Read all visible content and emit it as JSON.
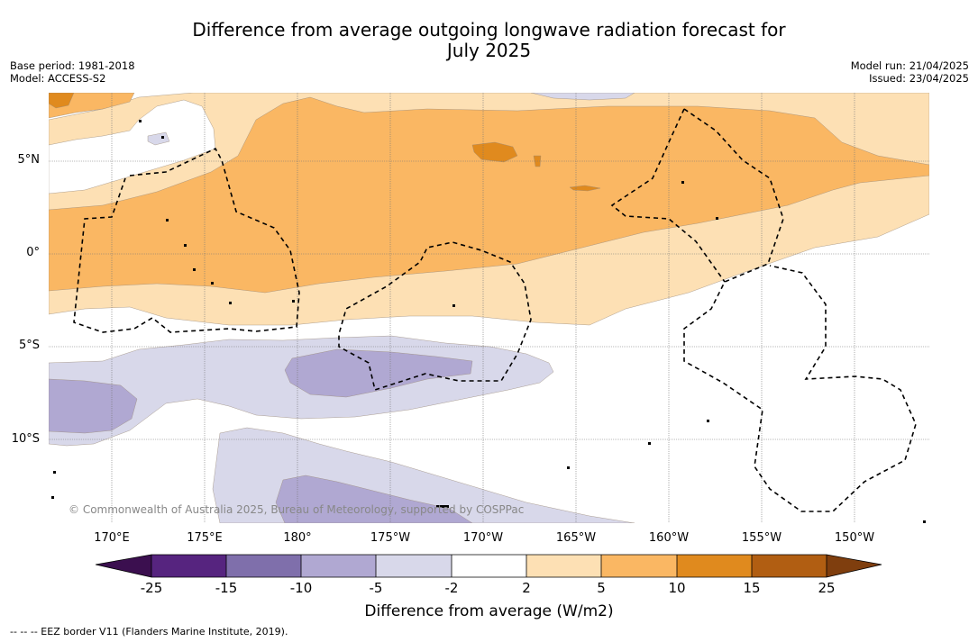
{
  "title_line1": "Difference from average outgoing longwave radiation forecast for",
  "title_line2": "July 2025",
  "meta_left": {
    "base_period": "Base period: 1981-2018",
    "model": "Model: ACCESS-S2"
  },
  "meta_right": {
    "model_run": "Model run: 21/04/2025",
    "issued": "Issued: 23/04/2025"
  },
  "lat_labels": [
    "5°N",
    "0°",
    "5°S",
    "10°S"
  ],
  "lon_labels": [
    "170°E",
    "175°E",
    "180°",
    "175°W",
    "170°W",
    "165°W",
    "160°W",
    "155°W",
    "150°W"
  ],
  "copyright": "© Commonwealth of Australia 2025, Bureau of Meteorology, supported by COSPPac",
  "colorbar": {
    "ticks": [
      "-25",
      "-15",
      "-10",
      "-5",
      "-2",
      "2",
      "5",
      "10",
      "15",
      "25"
    ],
    "colors": [
      "#3b0f4f",
      "#56247f",
      "#7f6fab",
      "#b0a8d2",
      "#d8d8ea",
      "#ffffff",
      "#fde0b4",
      "#fab763",
      "#e08a1e",
      "#b15e12",
      "#7f3e0e"
    ],
    "label": "Difference from average (W/m2)"
  },
  "footnote": "-- -- -- EEZ border V11 (Flanders Marine Institute, 2019).",
  "fill_colors": {
    "light_purple": "#d8d8ea",
    "mid_purple": "#b0a8d2",
    "light_orange": "#fde0b4",
    "mid_orange": "#fab763",
    "dark_orange": "#e08a1e"
  }
}
